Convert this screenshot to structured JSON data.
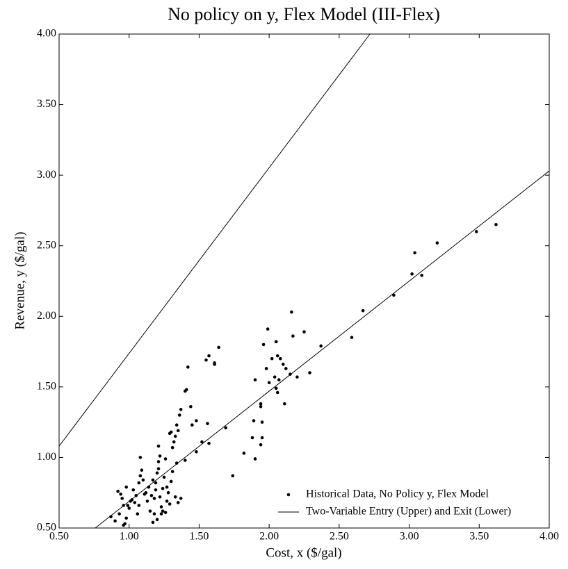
{
  "chart_data": {
    "type": "scatter",
    "title": "No policy on y, Flex Model (III-Flex)",
    "x_label": "Cost, x ($/gal)",
    "y_label": "Revenue, y ($/gal)",
    "xlim": [
      0.5,
      4.0
    ],
    "ylim": [
      0.5,
      4.0
    ],
    "xticks": [
      {
        "value": 0.5,
        "label": "0.50"
      },
      {
        "value": 1.0,
        "label": "1.00"
      },
      {
        "value": 1.5,
        "label": "1.50"
      },
      {
        "value": 2.0,
        "label": "2.00"
      },
      {
        "value": 2.5,
        "label": "2.50"
      },
      {
        "value": 3.0,
        "label": "3.00"
      },
      {
        "value": 3.5,
        "label": "3.50"
      },
      {
        "value": 4.0,
        "label": "4.00"
      }
    ],
    "yticks": [
      {
        "value": 0.5,
        "label": "0.50"
      },
      {
        "value": 1.0,
        "label": "1.00"
      },
      {
        "value": 1.5,
        "label": "1.50"
      },
      {
        "value": 2.0,
        "label": "2.00"
      },
      {
        "value": 2.5,
        "label": "2.50"
      },
      {
        "value": 3.0,
        "label": "3.00"
      },
      {
        "value": 3.5,
        "label": "3.50"
      },
      {
        "value": 4.0,
        "label": "4.00"
      }
    ],
    "grid": false,
    "legend_position": "lower-right",
    "series": [
      {
        "name": "Historical Data, No Policy y, Flex Model",
        "kind": "scatter",
        "color": "#000000",
        "x": [
          3.62,
          3.48,
          3.2,
          3.04,
          3.02,
          3.09,
          2.89,
          2.67,
          2.59,
          2.37,
          2.29,
          2.25,
          2.2,
          2.17,
          2.16,
          2.15,
          2.12,
          2.1,
          2.08,
          2.11,
          2.07,
          2.05,
          2.06,
          2.04,
          2.06,
          2.05,
          2.02,
          1.99,
          2.0,
          1.98,
          1.96,
          1.94,
          1.94,
          1.95,
          1.95,
          1.94,
          1.9,
          1.89,
          1.88,
          1.9,
          1.82,
          1.74,
          1.69,
          1.64,
          1.61,
          1.61,
          1.57,
          1.55,
          1.56,
          1.57,
          1.52,
          1.48,
          1.48,
          1.45,
          1.44,
          1.42,
          1.41,
          1.4,
          1.4,
          1.37,
          1.36,
          1.35,
          1.34,
          1.33,
          1.32,
          1.3,
          1.29,
          1.31,
          1.34,
          1.37,
          1.35,
          1.33,
          1.31,
          1.3,
          1.29,
          1.28,
          1.27,
          1.26,
          1.25,
          1.24,
          1.23,
          1.23,
          1.22,
          1.21,
          1.21,
          1.21,
          1.2,
          1.19,
          1.19,
          1.18,
          1.18,
          1.17,
          1.17,
          1.16,
          1.15,
          1.14,
          1.13,
          1.12,
          1.11,
          1.1,
          1.09,
          1.08,
          1.08,
          1.07,
          1.07,
          1.06,
          1.05,
          1.04,
          1.03,
          1.02,
          1.01,
          1.0,
          0.99,
          0.98,
          0.98,
          0.97,
          0.96,
          0.95,
          0.94,
          0.93,
          0.92,
          0.9,
          0.87,
          0.96,
          1.26,
          1.24,
          1.2,
          1.27,
          1.22
        ],
        "values": [
          2.65,
          2.6,
          2.52,
          2.45,
          2.3,
          2.29,
          2.15,
          2.04,
          1.85,
          1.79,
          1.6,
          1.89,
          1.57,
          1.86,
          2.03,
          1.59,
          1.63,
          1.66,
          1.7,
          1.38,
          1.55,
          1.82,
          1.72,
          1.57,
          1.46,
          1.49,
          1.7,
          1.91,
          1.53,
          1.63,
          1.8,
          1.38,
          1.36,
          1.25,
          1.14,
          1.09,
          1.55,
          1.26,
          1.14,
          0.99,
          1.03,
          0.87,
          1.21,
          1.78,
          1.66,
          1.67,
          1.72,
          1.69,
          1.24,
          1.1,
          1.11,
          1.04,
          1.26,
          1.23,
          1.36,
          1.64,
          1.48,
          1.47,
          0.98,
          1.34,
          1.3,
          1.19,
          1.23,
          1.15,
          1.11,
          1.18,
          1.17,
          1.07,
          0.96,
          0.71,
          0.68,
          0.72,
          0.9,
          0.83,
          0.67,
          0.75,
          0.79,
          0.99,
          0.86,
          0.78,
          0.65,
          0.6,
          1.01,
          0.97,
          0.92,
          1.08,
          0.89,
          0.82,
          0.77,
          0.71,
          0.6,
          0.84,
          0.54,
          0.73,
          0.62,
          0.79,
          0.69,
          0.75,
          0.74,
          0.84,
          0.91,
          1.0,
          0.87,
          0.82,
          0.66,
          0.6,
          0.73,
          0.68,
          0.77,
          0.7,
          0.69,
          0.64,
          0.66,
          0.79,
          0.57,
          0.53,
          0.66,
          0.71,
          0.74,
          0.6,
          0.76,
          0.55,
          0.58,
          0.52,
          0.61,
          0.62,
          0.56,
          0.69,
          0.72
        ]
      },
      {
        "name": "Two-Variable Entry (Upper) and Exit (Lower)",
        "kind": "line",
        "color": "#000000",
        "x": [
          0.5,
          2.72,
          null,
          0.758,
          4.0
        ],
        "values": [
          1.08,
          4.0,
          null,
          0.5,
          3.03
        ]
      }
    ]
  }
}
